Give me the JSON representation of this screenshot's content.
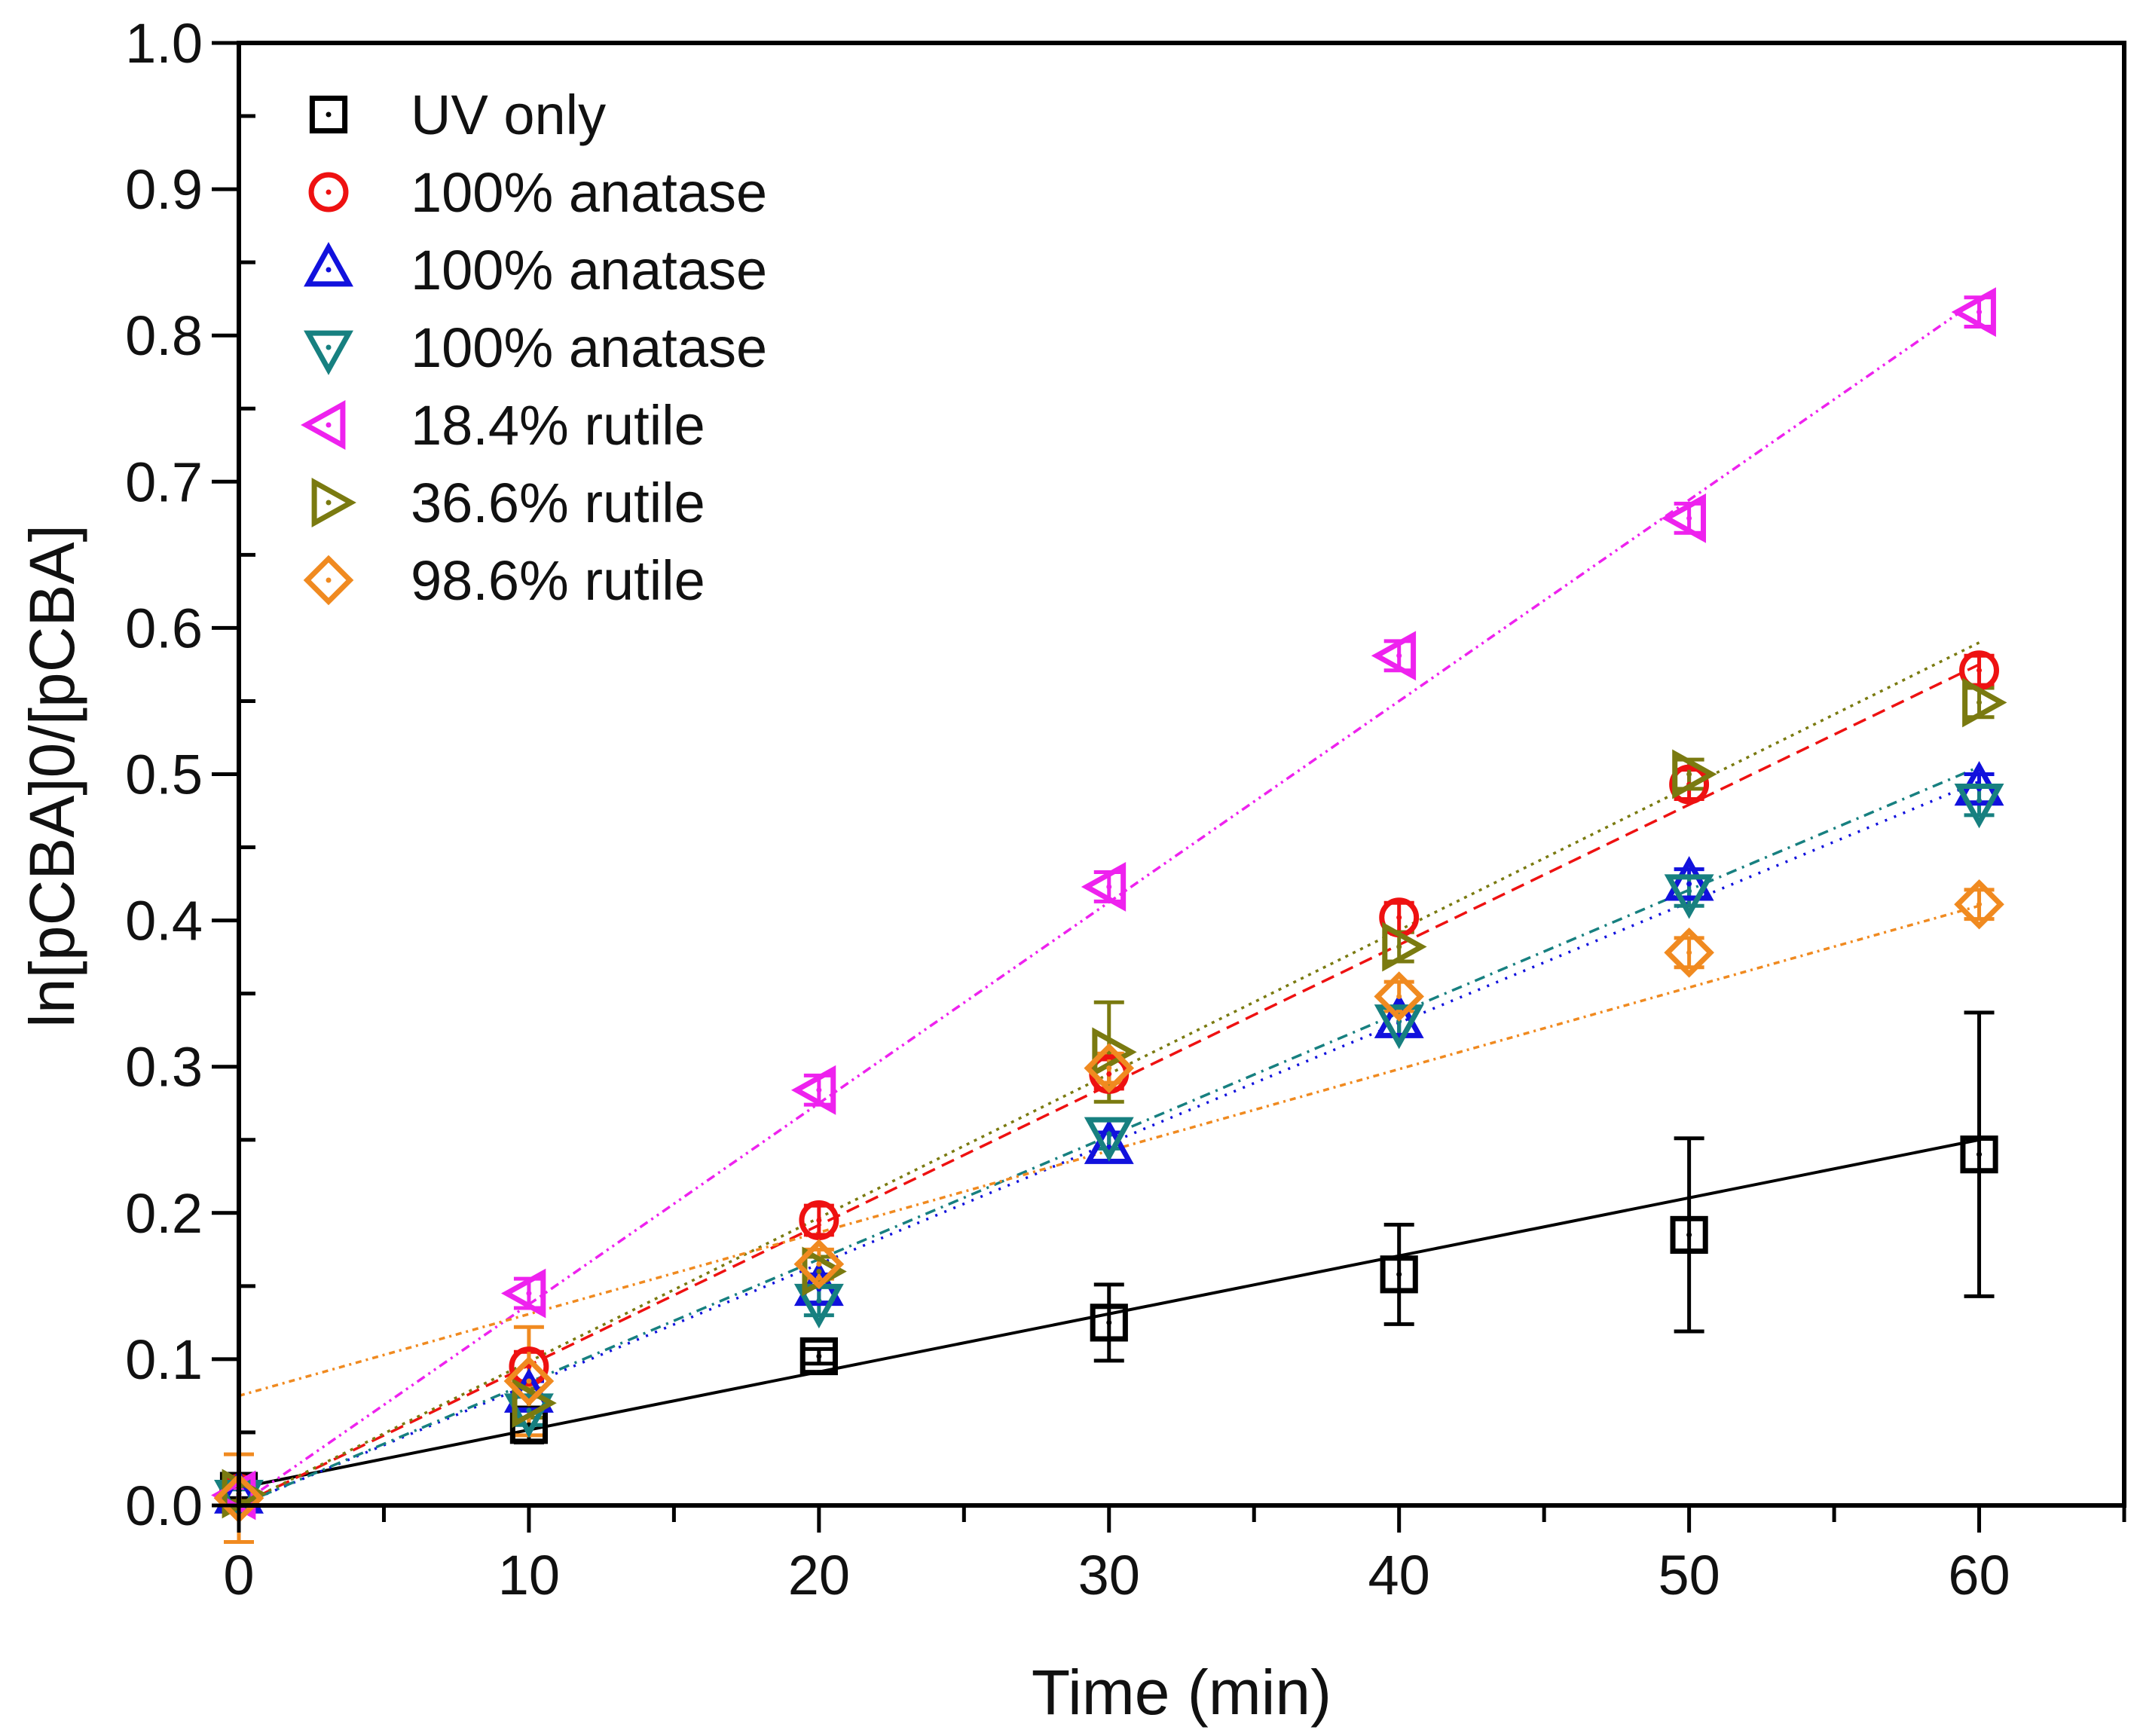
{
  "chart_data": {
    "type": "scatter",
    "title": "",
    "xlabel": "Time (min)",
    "ylabel": "ln[pCBA]0/[pCBA]",
    "xlim": [
      0,
      65
    ],
    "ylim": [
      0,
      1.0
    ],
    "xticks": [
      0,
      10,
      20,
      30,
      40,
      50,
      60
    ],
    "xtick_labels": [
      "0",
      "10",
      "20",
      "30",
      "40",
      "50",
      "60"
    ],
    "yticks": [
      0.0,
      0.1,
      0.2,
      0.3,
      0.4,
      0.5,
      0.6,
      0.7,
      0.8,
      0.9,
      1.0
    ],
    "ytick_labels": [
      "0.0",
      "0.1",
      "0.2",
      "0.3",
      "0.4",
      "0.5",
      "0.6",
      "0.7",
      "0.8",
      "0.9",
      "1.0"
    ],
    "grid": false,
    "legend_position": "top-left",
    "x": [
      0,
      10,
      20,
      30,
      40,
      50,
      60
    ],
    "series": [
      {
        "name": "UV only",
        "marker": "square",
        "color": "#000000",
        "line_style": "solid",
        "values": [
          0.01,
          0.055,
          0.102,
          0.125,
          0.158,
          0.185,
          0.24
        ],
        "errors": [
          0.005,
          0.012,
          0.005,
          0.026,
          0.034,
          0.066,
          0.097
        ],
        "fit": [
          0.012,
          0.25
        ]
      },
      {
        "name": "100% anatase",
        "marker": "circle",
        "color": "#ee1111",
        "line_style": "dashed",
        "values": [
          0.008,
          0.095,
          0.195,
          0.295,
          0.402,
          0.493,
          0.571
        ],
        "errors": [
          0.005,
          0.01,
          0.01,
          0.01,
          0.01,
          0.01,
          0.01
        ],
        "fit": [
          0.0,
          0.575
        ]
      },
      {
        "name": "100% anatase",
        "marker": "triangle-up",
        "color": "#1111dd",
        "line_style": "dotted",
        "values": [
          0.006,
          0.075,
          0.148,
          0.245,
          0.331,
          0.425,
          0.49
        ],
        "errors": [
          0.005,
          0.01,
          0.01,
          0.01,
          0.01,
          0.01,
          0.01
        ],
        "fit": [
          0.0,
          0.495
        ]
      },
      {
        "name": "100% anatase",
        "marker": "triangle-down",
        "color": "#178080",
        "line_style": "dash-dot",
        "values": [
          0.006,
          0.065,
          0.14,
          0.254,
          0.331,
          0.42,
          0.482
        ],
        "errors": [
          0.005,
          0.01,
          0.01,
          0.01,
          0.01,
          0.01,
          0.01
        ],
        "fit": [
          0.0,
          0.505
        ]
      },
      {
        "name": "18.4% rutile",
        "marker": "triangle-left",
        "color": "#ee22ee",
        "line_style": "dash-dot-dot",
        "values": [
          0.007,
          0.145,
          0.284,
          0.423,
          0.581,
          0.675,
          0.816
        ],
        "errors": [
          0.005,
          0.01,
          0.01,
          0.01,
          0.01,
          0.01,
          0.01
        ],
        "fit": [
          0.0,
          0.825
        ]
      },
      {
        "name": "36.6% rutile",
        "marker": "triangle-right",
        "color": "#7a7a10",
        "line_style": "short-dot",
        "values": [
          0.008,
          0.07,
          0.16,
          0.31,
          0.382,
          0.5,
          0.549
        ],
        "errors": [
          0.005,
          0.01,
          0.01,
          0.034,
          0.01,
          0.01,
          0.01
        ],
        "fit": [
          0.0,
          0.59
        ]
      },
      {
        "name": "98.6% rutile",
        "marker": "diamond",
        "color": "#f08a20",
        "line_style": "short-dash-dot",
        "values": [
          0.005,
          0.085,
          0.165,
          0.299,
          0.348,
          0.378,
          0.411
        ],
        "errors": [
          0.03,
          0.037,
          0.01,
          0.01,
          0.01,
          0.01,
          0.01
        ],
        "fit": [
          0.075,
          0.41
        ]
      }
    ]
  }
}
